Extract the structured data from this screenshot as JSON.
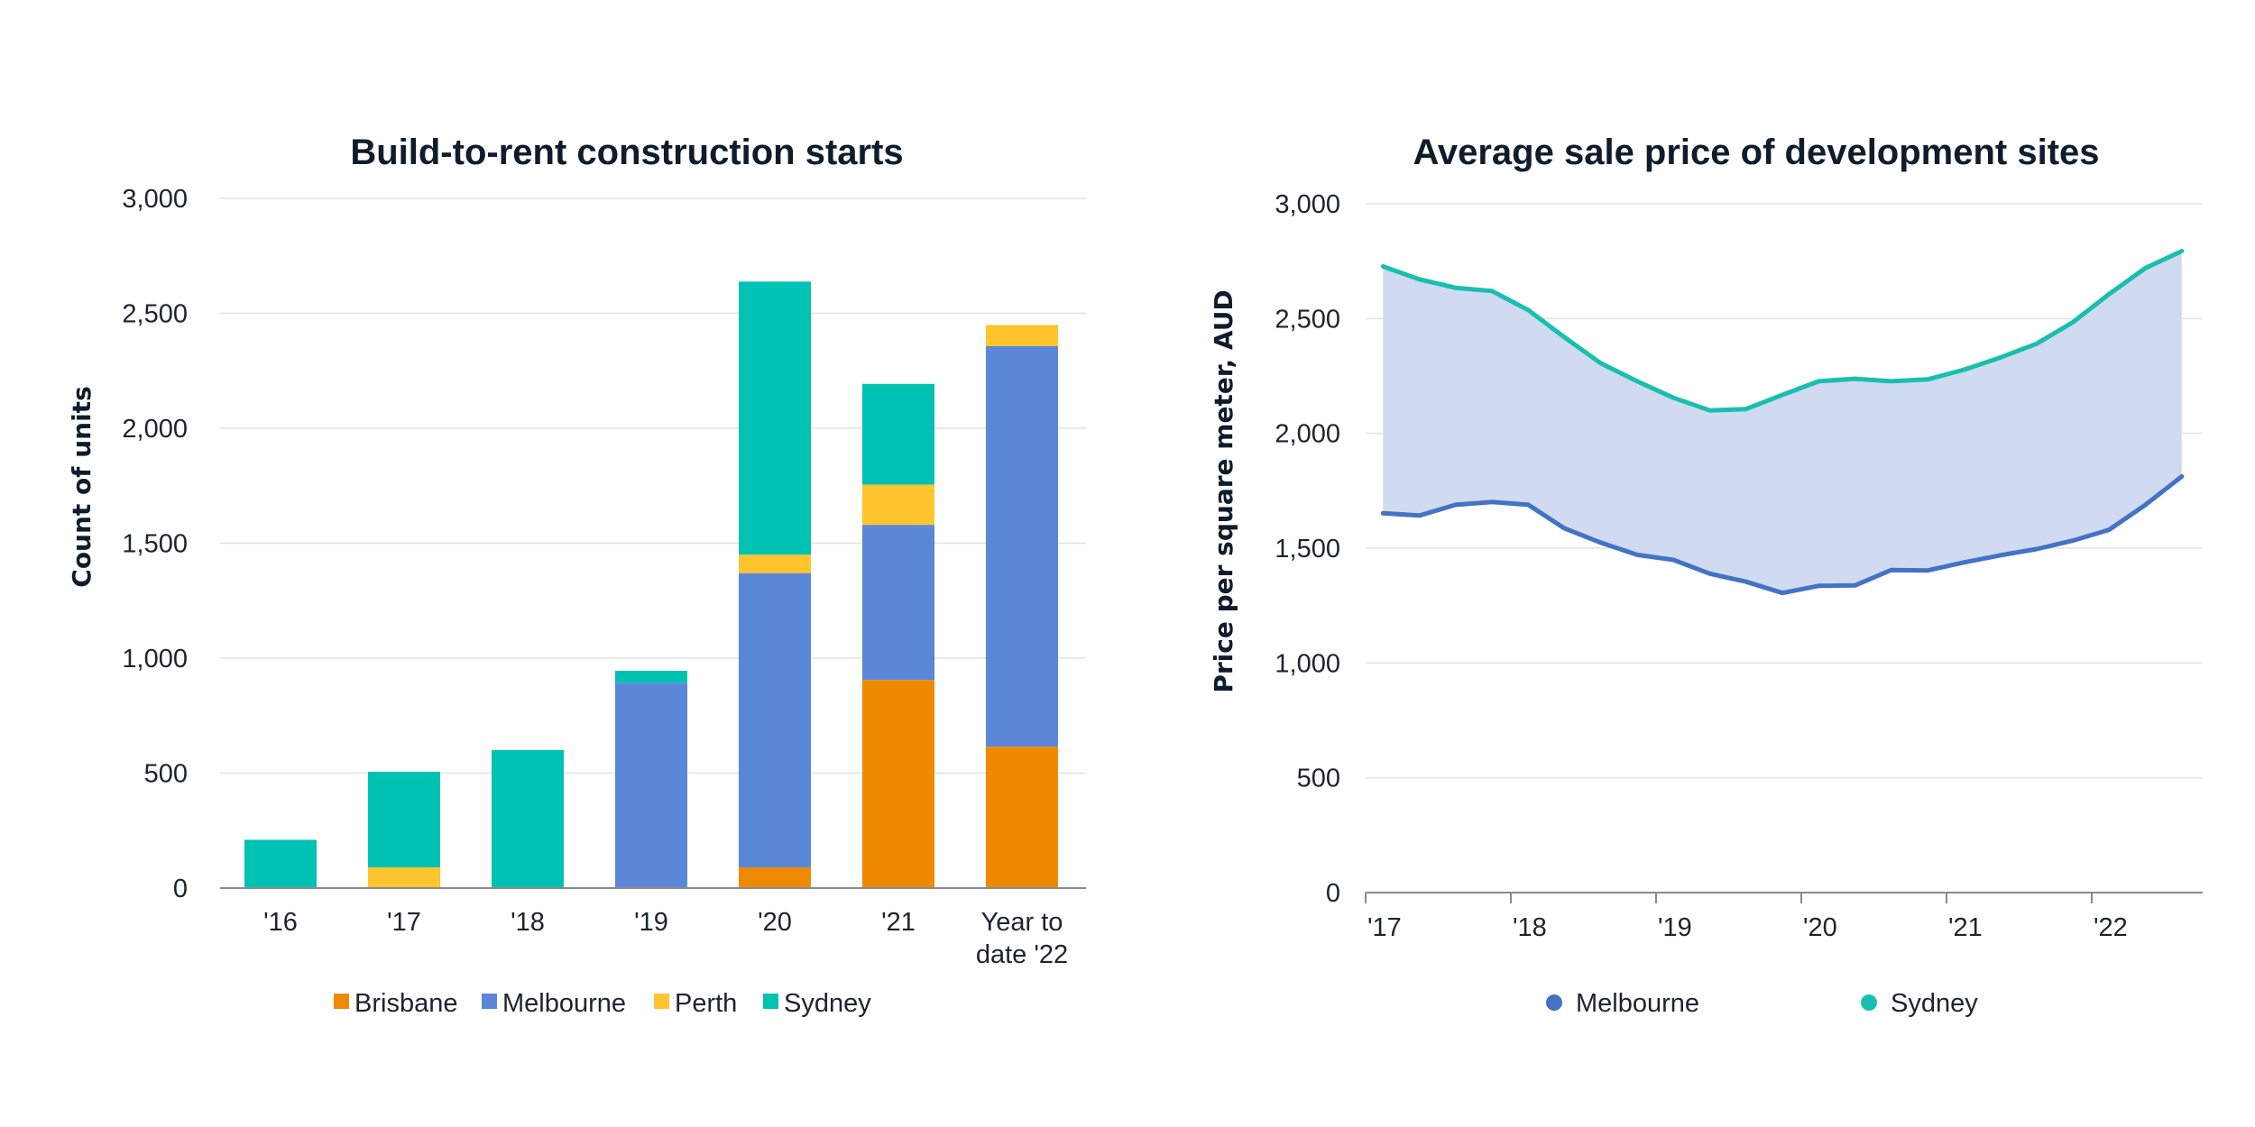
{
  "chart_data": [
    {
      "type": "bar",
      "stacked": true,
      "title": "Build-to-rent construction starts",
      "xlabel": "",
      "ylabel": "Count of units",
      "ylim": [
        0,
        3000
      ],
      "yticks": [
        0,
        500,
        1000,
        1500,
        2000,
        2500,
        3000
      ],
      "ytick_labels": [
        "0",
        "500",
        "1,000",
        "1,500",
        "2,000",
        "2,500",
        "3,000"
      ],
      "grid": true,
      "legend_position": "bottom",
      "categories": [
        "'16",
        "'17",
        "'18",
        "'19",
        "'20",
        "'21",
        "Year to date '22"
      ],
      "category_lines": [
        [
          "'16"
        ],
        [
          "'17"
        ],
        [
          "'18"
        ],
        [
          "'19"
        ],
        [
          "'20"
        ],
        [
          "'21"
        ],
        [
          "Year to",
          "date '22"
        ]
      ],
      "series": [
        {
          "name": "Brisbane",
          "color": "#EE8A00",
          "values": [
            0,
            0,
            0,
            0,
            90,
            905,
            615
          ]
        },
        {
          "name": "Melbourne",
          "color": "#5B87D9",
          "values": [
            0,
            0,
            0,
            893,
            1280,
            675,
            1742
          ]
        },
        {
          "name": "Perth",
          "color": "#FFC42E",
          "values": [
            0,
            90,
            0,
            0,
            80,
            175,
            92
          ]
        },
        {
          "name": "Sydney",
          "color": "#00C2B2",
          "values": [
            210,
            416,
            600,
            52,
            1188,
            438,
            0
          ]
        }
      ]
    },
    {
      "type": "area",
      "title": "Average sale price of development sites",
      "xlabel": "",
      "ylabel": "Price per square meter, AUD",
      "ylim": [
        0,
        3000
      ],
      "xlim": [
        2017,
        2022.75
      ],
      "yticks": [
        0,
        500,
        1000,
        1500,
        2000,
        2500,
        3000
      ],
      "ytick_labels": [
        "0",
        "500",
        "1,000",
        "1,500",
        "2,000",
        "2,500",
        "3,000"
      ],
      "xticks": [
        2017,
        2018,
        2019,
        2020,
        2021,
        2022
      ],
      "xtick_labels": [
        "'17",
        "'18",
        "'19",
        "'20",
        "'21",
        "'22"
      ],
      "grid": true,
      "legend_position": "bottom",
      "fill_between_series": true,
      "fill_color": "#D0DAF0",
      "x": [
        2017.12,
        2017.37,
        2017.62,
        2017.87,
        2018.12,
        2018.37,
        2018.62,
        2018.87,
        2019.12,
        2019.37,
        2019.62,
        2019.87,
        2020.12,
        2020.37,
        2020.62,
        2020.87,
        2021.12,
        2021.37,
        2021.62,
        2021.87,
        2022.12,
        2022.37,
        2022.62
      ],
      "series": [
        {
          "name": "Melbourne",
          "color": "#4472C4",
          "values": [
            1652,
            1642,
            1689,
            1701,
            1689,
            1586,
            1524,
            1471,
            1449,
            1389,
            1354,
            1305,
            1336,
            1338,
            1405,
            1403,
            1438,
            1469,
            1496,
            1533,
            1580,
            1689,
            1812
          ]
        },
        {
          "name": "Sydney",
          "color": "#19BFAE",
          "values": [
            2727,
            2671,
            2634,
            2620,
            2537,
            2418,
            2305,
            2227,
            2155,
            2100,
            2106,
            2168,
            2227,
            2238,
            2227,
            2235,
            2277,
            2330,
            2390,
            2484,
            2607,
            2720,
            2794
          ]
        }
      ]
    }
  ]
}
